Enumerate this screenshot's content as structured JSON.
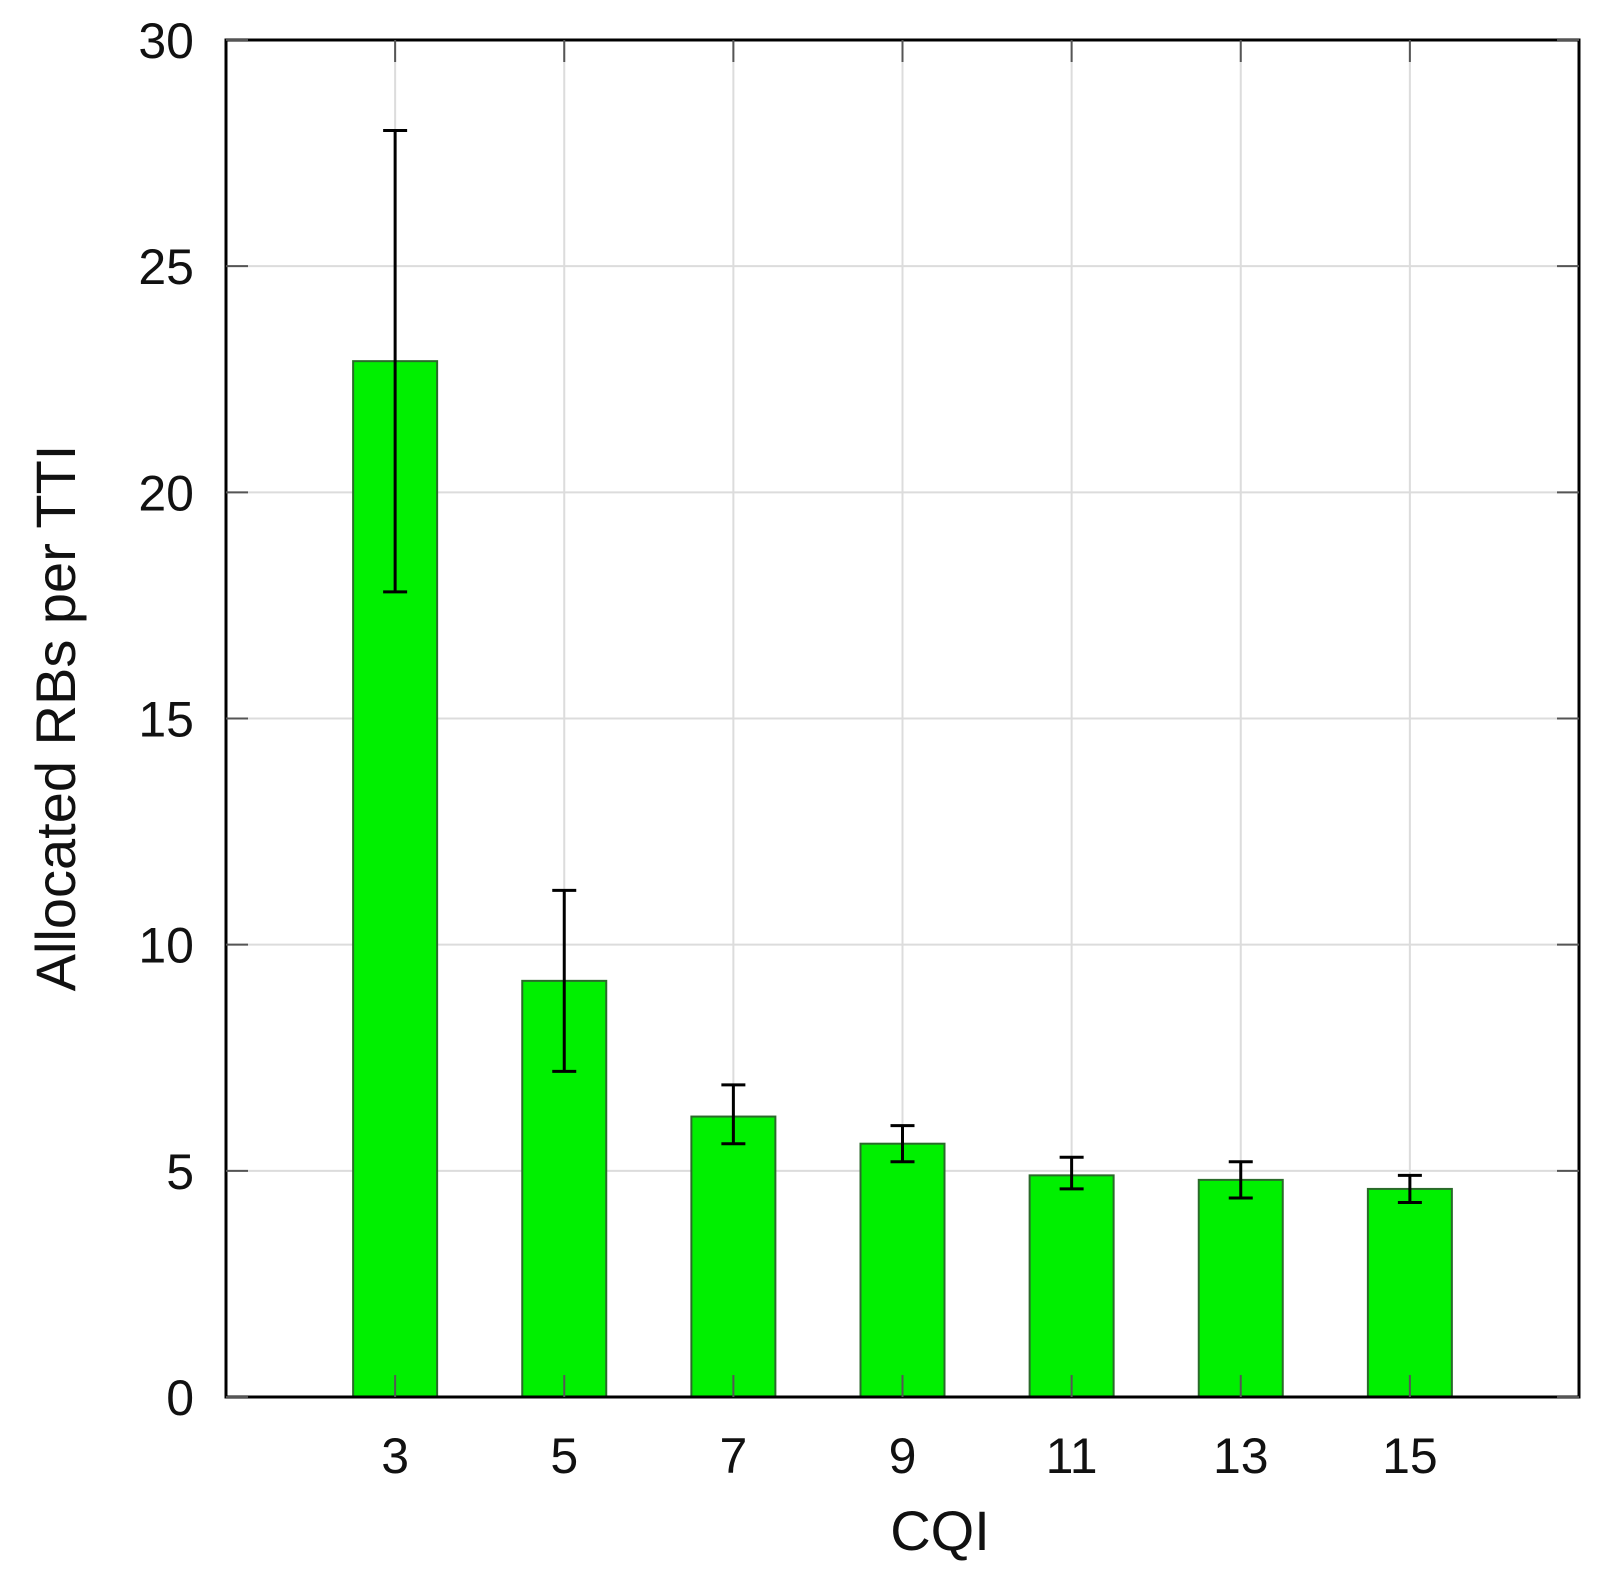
{
  "chart_data": {
    "type": "bar",
    "categories": [
      "3",
      "5",
      "7",
      "9",
      "11",
      "13",
      "15"
    ],
    "series": [
      {
        "values": [
          22.9,
          9.2,
          6.2,
          5.6,
          4.9,
          4.8,
          4.6
        ],
        "error_low": [
          17.8,
          7.2,
          5.6,
          5.2,
          4.6,
          4.4,
          4.3
        ],
        "error_high": [
          28.0,
          11.2,
          6.9,
          6.0,
          5.3,
          5.2,
          4.9
        ]
      }
    ],
    "xlabel": "CQI",
    "ylabel": "Allocated RBs per TTI",
    "ylim": [
      0,
      30
    ],
    "yticks": [
      "0",
      "5",
      "10",
      "15",
      "20",
      "25",
      "30"
    ],
    "grid": true,
    "bar_color": "#00f000"
  }
}
